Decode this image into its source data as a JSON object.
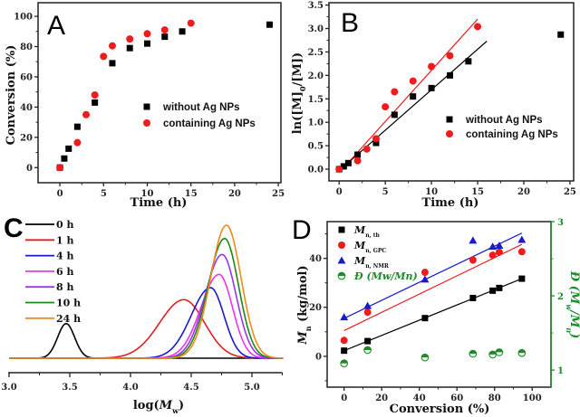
{
  "chart_data": [
    {
      "panel": "A",
      "type": "scatter",
      "xlabel": "Time (h)",
      "ylabel": "Conversion (%)",
      "xlim": [
        -2.5,
        25.3
      ],
      "ylim": [
        -10,
        109
      ],
      "xticks": [
        0,
        5,
        10,
        15,
        20,
        25
      ],
      "xtick_labels": [
        "0",
        "5",
        "10",
        "15",
        "20",
        "25"
      ],
      "yticks": [
        0,
        20,
        40,
        60,
        80,
        100
      ],
      "ytick_labels": [
        "0",
        "20",
        "40",
        "60",
        "80",
        "100"
      ],
      "legend_position": "center-right",
      "series": [
        {
          "name": "without Ag NPs",
          "marker": "square",
          "color": "#000000",
          "x": [
            0,
            0.5,
            1,
            2,
            4,
            6,
            8,
            10,
            12,
            14,
            24
          ],
          "y": [
            0,
            6,
            12.5,
            27,
            43,
            69,
            79,
            82,
            86.5,
            90,
            94.5
          ]
        },
        {
          "name": "containing Ag NPs",
          "marker": "circle",
          "color": "#ee1c1c",
          "x": [
            0,
            2,
            3,
            4,
            5,
            6,
            8,
            10,
            12,
            15
          ],
          "y": [
            0,
            16.5,
            35,
            48,
            73.5,
            80.5,
            85,
            88.5,
            91,
            95.5
          ]
        }
      ]
    },
    {
      "panel": "B",
      "type": "scatter",
      "xlabel": "Time (h)",
      "ylabel": "ln([M]0/[M])",
      "ylabel_parts": [
        "ln([M]",
        "0",
        "/[M])"
      ],
      "xlim": [
        -1.1,
        25.4
      ],
      "ylim": [
        -0.25,
        3.55
      ],
      "xticks": [
        0,
        5,
        10,
        15,
        20,
        25
      ],
      "xtick_labels": [
        "0",
        "5",
        "10",
        "15",
        "20",
        "25"
      ],
      "yticks": [
        0,
        0.5,
        1,
        1.5,
        2,
        2.5,
        3,
        3.5
      ],
      "ytick_labels": [
        "0.0",
        "0.5",
        "1.0",
        "1.5",
        "2.0",
        "2.5",
        "3.0",
        "3.5"
      ],
      "legend_position": "center-right",
      "series": [
        {
          "name": "without Ag NPs",
          "marker": "square",
          "color": "#000000",
          "x": [
            0,
            0.5,
            1,
            2,
            4,
            6,
            8,
            10,
            12,
            14,
            24
          ],
          "y": [
            0,
            0.06,
            0.13,
            0.31,
            0.56,
            1.16,
            1.55,
            1.73,
            2.0,
            2.3,
            2.87
          ],
          "fit": {
            "x": [
              0.3,
              16
            ],
            "y": [
              0.02,
              2.73
            ]
          }
        },
        {
          "name": "containing Ag NPs",
          "marker": "circle",
          "color": "#ee1c1c",
          "x": [
            0,
            2,
            3,
            4,
            5,
            6,
            8,
            10,
            12,
            15
          ],
          "y": [
            0,
            0.18,
            0.43,
            0.65,
            1.33,
            1.65,
            1.88,
            2.19,
            2.42,
            3.04
          ],
          "fit": {
            "x": [
              0.8,
              15
            ],
            "y": [
              0.1,
              3.2
            ]
          }
        }
      ]
    },
    {
      "panel": "C",
      "type": "line",
      "xlabel": "log(Mw)",
      "xlabel_parts": [
        "log(",
        "M",
        "w",
        ")"
      ],
      "xlim": [
        3.0,
        5.25
      ],
      "xticks": [
        3.0,
        3.5,
        4.0,
        4.5,
        5.0
      ],
      "xtick_labels": [
        "3.0",
        "3.5",
        "4.0",
        "4.5",
        "5.0"
      ],
      "legend_position": "top-left",
      "series": [
        {
          "name": "0 h",
          "color": "#000000",
          "center": 3.47,
          "sigma_left": 0.07,
          "sigma_right": 0.07,
          "height": 0.26
        },
        {
          "name": "1 h",
          "color": "#e02020",
          "center": 4.44,
          "sigma_left": 0.2,
          "sigma_right": 0.17,
          "height": 0.44
        },
        {
          "name": "4 h",
          "color": "#1a1acc",
          "center": 4.66,
          "sigma_left": 0.16,
          "sigma_right": 0.11,
          "height": 0.53
        },
        {
          "name": "6 h",
          "color": "#ee33ee",
          "center": 4.73,
          "sigma_left": 0.15,
          "sigma_right": 0.11,
          "height": 0.63
        },
        {
          "name": "8 h",
          "color": "#9a33ee",
          "center": 4.755,
          "sigma_left": 0.14,
          "sigma_right": 0.115,
          "height": 0.78
        },
        {
          "name": "10 h",
          "color": "#1a8a1a",
          "center": 4.775,
          "sigma_left": 0.135,
          "sigma_right": 0.115,
          "height": 0.9
        },
        {
          "name": "24 h",
          "color": "#f08a1a",
          "center": 4.79,
          "sigma_left": 0.13,
          "sigma_right": 0.12,
          "height": 1.0
        }
      ]
    },
    {
      "panel": "D",
      "type": "scatter",
      "xlabel": "Conversion (%)",
      "ylabel": "Mn (kg/mol)",
      "ylabel_parts": [
        "M",
        "n",
        " (kg/mol)"
      ],
      "y2label": "Đ (Mw/Mn)",
      "y2label_parts": [
        "Đ (",
        "M",
        "w",
        "/",
        "M",
        "n",
        ")"
      ],
      "xlim": [
        -9,
        110
      ],
      "ylim": [
        -12.6,
        55
      ],
      "y2lim": [
        0.77,
        3.0
      ],
      "xticks": [
        0,
        20,
        40,
        60,
        80,
        100
      ],
      "xtick_labels": [
        "0",
        "20",
        "40",
        "60",
        "80",
        "100"
      ],
      "yticks": [
        0,
        20,
        40
      ],
      "ytick_labels": [
        "0",
        "20",
        "40"
      ],
      "y2ticks": [
        1,
        2,
        3
      ],
      "y2tick_labels": [
        "1",
        "2",
        "3"
      ],
      "y2color": "#1f8a2a",
      "legend_position": "top-left",
      "series": [
        {
          "name": "Mn, th",
          "name_main": "M",
          "name_sub": "n, th",
          "marker": "square",
          "color": "#000000",
          "axis": "left",
          "x": [
            0,
            12.5,
            43,
            68.5,
            79,
            82.5,
            94.5
          ],
          "y": [
            2.3,
            6.2,
            15.6,
            23.8,
            26.8,
            27.9,
            31.7
          ],
          "fit": {
            "x": [
              0,
              94.5
            ],
            "y": [
              2.3,
              31.7
            ]
          }
        },
        {
          "name": "Mn, GPC",
          "name_main": "M",
          "name_sub": "n, GPC",
          "marker": "circle",
          "color": "#ee1c1c",
          "axis": "left",
          "x": [
            0,
            12.5,
            43,
            68.5,
            79,
            82.5,
            94.5
          ],
          "y": [
            6.5,
            18,
            34.3,
            39.3,
            41.3,
            42.5,
            42.7
          ],
          "fit": {
            "x": [
              0,
              94.5
            ],
            "y": [
              10.5,
              45.7
            ]
          }
        },
        {
          "name": "Mn, NMR",
          "name_main": "M",
          "name_sub": "n, NMR",
          "marker": "triangle",
          "color": "#1a1acc",
          "axis": "left",
          "x": [
            0,
            12.5,
            43,
            68.5,
            79,
            82.5,
            94.5
          ],
          "y": [
            16,
            20.6,
            31.4,
            47.3,
            44.8,
            45.2,
            47.6
          ],
          "fit": {
            "x": [
              0,
              94.5
            ],
            "y": [
              15.5,
              50.3
            ]
          }
        },
        {
          "name": "Đ (Mw/Mn)",
          "name_main": "Đ (Mw/Mn)",
          "marker": "half-circle",
          "color": "#1f8a2a",
          "axis": "right",
          "x": [
            0,
            12.5,
            43,
            68.5,
            79,
            82.5,
            94.5
          ],
          "y": [
            1.09,
            1.27,
            1.17,
            1.22,
            1.21,
            1.24,
            1.23
          ]
        }
      ]
    }
  ],
  "panel_labels": [
    "A",
    "B",
    "C",
    "D"
  ]
}
